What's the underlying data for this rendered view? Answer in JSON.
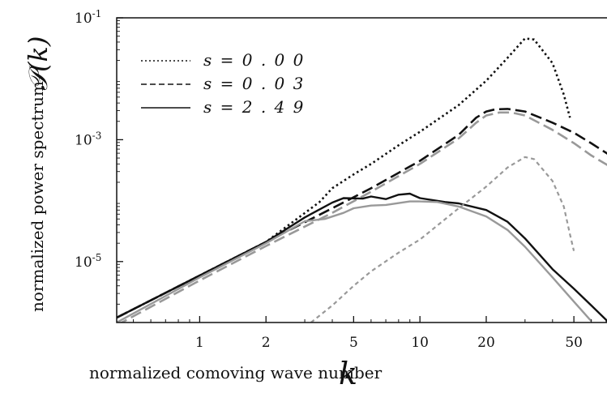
{
  "chart_data": {
    "type": "line",
    "scale": {
      "x": "log",
      "y": "log"
    },
    "xlim": [
      0.42,
      75
    ],
    "ylim": [
      1e-06,
      0.1
    ],
    "xlabel": "normalized comoving wave number",
    "xlabel_symbol": "k",
    "ylabel": "normalized power spectrum",
    "ylabel_symbol": "𝒫(k)",
    "x_ticks": [
      {
        "value": 1,
        "label": "1"
      },
      {
        "value": 2,
        "label": "2"
      },
      {
        "value": 5,
        "label": "5"
      },
      {
        "value": 10,
        "label": "10"
      },
      {
        "value": 20,
        "label": "20"
      },
      {
        "value": 50,
        "label": "50"
      }
    ],
    "y_ticks": [
      {
        "value": 1e-05,
        "label": "10",
        "exp": "-5"
      },
      {
        "value": 0.001,
        "label": "10",
        "exp": "-3"
      },
      {
        "value": 0.1,
        "label": "10",
        "exp": "-1"
      }
    ],
    "legend": {
      "position": "top-left",
      "entries": [
        {
          "label": "s = 0 . 0 0",
          "dash": "dotted"
        },
        {
          "label": "s = 0 . 0 3",
          "dash": "dashed"
        },
        {
          "label": "s = 2 . 4 9",
          "dash": "solid"
        }
      ]
    },
    "series": [
      {
        "color": "#111111",
        "dash": "dotted",
        "width": 2.6,
        "points": [
          [
            0.42,
            1.2e-06
          ],
          [
            1,
            5.9e-06
          ],
          [
            2,
            2.1e-05
          ],
          [
            3.5,
            9.5e-05
          ],
          [
            4,
            0.00016
          ],
          [
            5,
            0.00027
          ],
          [
            6,
            0.0004
          ],
          [
            8,
            0.00081
          ],
          [
            10,
            0.00135
          ],
          [
            15,
            0.0037
          ],
          [
            20,
            0.0093
          ],
          [
            25,
            0.022
          ],
          [
            30,
            0.046
          ],
          [
            33,
            0.044
          ],
          [
            40,
            0.018
          ],
          [
            45,
            0.0055
          ],
          [
            48,
            0.0023
          ]
        ]
      },
      {
        "color": "#111111",
        "dash": "dashed",
        "width": 2.6,
        "points": [
          [
            0.42,
            1.2e-06
          ],
          [
            1,
            5.9e-06
          ],
          [
            2,
            2.1e-05
          ],
          [
            4,
            7.5e-05
          ],
          [
            6,
            0.00016
          ],
          [
            10,
            0.00045
          ],
          [
            15,
            0.0012
          ],
          [
            18,
            0.0023
          ],
          [
            20,
            0.0029
          ],
          [
            22,
            0.00315
          ],
          [
            25,
            0.0032
          ],
          [
            30,
            0.0029
          ],
          [
            40,
            0.0019
          ],
          [
            50,
            0.0013
          ],
          [
            60,
            0.00087
          ],
          [
            75,
            0.00052
          ]
        ]
      },
      {
        "color": "#999999",
        "dash": "dashed",
        "width": 2.6,
        "points": [
          [
            0.42,
            9e-07
          ],
          [
            1,
            4.9e-06
          ],
          [
            2,
            1.8e-05
          ],
          [
            4,
            6.3e-05
          ],
          [
            6,
            0.00014
          ],
          [
            10,
            0.0004
          ],
          [
            15,
            0.00105
          ],
          [
            18,
            0.0019
          ],
          [
            20,
            0.0025
          ],
          [
            23,
            0.0028
          ],
          [
            26,
            0.0028
          ],
          [
            30,
            0.0025
          ],
          [
            40,
            0.00145
          ],
          [
            50,
            0.00088
          ],
          [
            60,
            0.00055
          ],
          [
            75,
            0.00034
          ]
        ]
      },
      {
        "color": "#111111",
        "dash": "solid",
        "width": 2.4,
        "points": [
          [
            0.42,
            1.2e-06
          ],
          [
            1,
            5.9e-06
          ],
          [
            2,
            2.1e-05
          ],
          [
            3,
            5.3e-05
          ],
          [
            4,
            9.3e-05
          ],
          [
            4.5,
            0.00011
          ],
          [
            5.5,
            0.000108
          ],
          [
            6,
            0.000117
          ],
          [
            7,
            0.000106
          ],
          [
            8,
            0.000125
          ],
          [
            9,
            0.00013
          ],
          [
            10,
            0.00011
          ],
          [
            13,
            9.5e-05
          ],
          [
            15,
            9e-05
          ],
          [
            20,
            7e-05
          ],
          [
            25,
            4.5e-05
          ],
          [
            30,
            2.4e-05
          ],
          [
            40,
            7.5e-06
          ],
          [
            50,
            3.6e-06
          ],
          [
            60,
            1.9e-06
          ],
          [
            72,
            1e-06
          ]
        ]
      },
      {
        "color": "#999999",
        "dash": "solid",
        "width": 2.4,
        "points": [
          [
            0.42,
            1e-06
          ],
          [
            1,
            5.5e-06
          ],
          [
            2,
            2e-05
          ],
          [
            3,
            4.6e-05
          ],
          [
            3.7,
            5e-05
          ],
          [
            4.5,
            6.3e-05
          ],
          [
            5,
            7.5e-05
          ],
          [
            6,
            8.3e-05
          ],
          [
            7,
            8.5e-05
          ],
          [
            9,
            9.7e-05
          ],
          [
            10,
            9.7e-05
          ],
          [
            12,
            9.5e-05
          ],
          [
            15,
            8e-05
          ],
          [
            20,
            5.5e-05
          ],
          [
            25,
            3.3e-05
          ],
          [
            30,
            1.75e-05
          ],
          [
            40,
            5.5e-06
          ],
          [
            50,
            2.2e-06
          ],
          [
            60,
            1.05e-06
          ]
        ]
      },
      {
        "color": "#999999",
        "dash": "shortdash",
        "width": 2.2,
        "points": [
          [
            3.2,
            1e-06
          ],
          [
            4,
            1.9e-06
          ],
          [
            5,
            4e-06
          ],
          [
            6,
            6.9e-06
          ],
          [
            8,
            1.4e-05
          ],
          [
            10,
            2.3e-05
          ],
          [
            15,
            7.5e-05
          ],
          [
            20,
            0.00017
          ],
          [
            25,
            0.00035
          ],
          [
            30,
            0.00052
          ],
          [
            33,
            0.00048
          ],
          [
            40,
            0.00021
          ],
          [
            45,
            8e-05
          ],
          [
            48,
            2.8e-05
          ],
          [
            50,
            1.5e-05
          ]
        ]
      }
    ]
  }
}
